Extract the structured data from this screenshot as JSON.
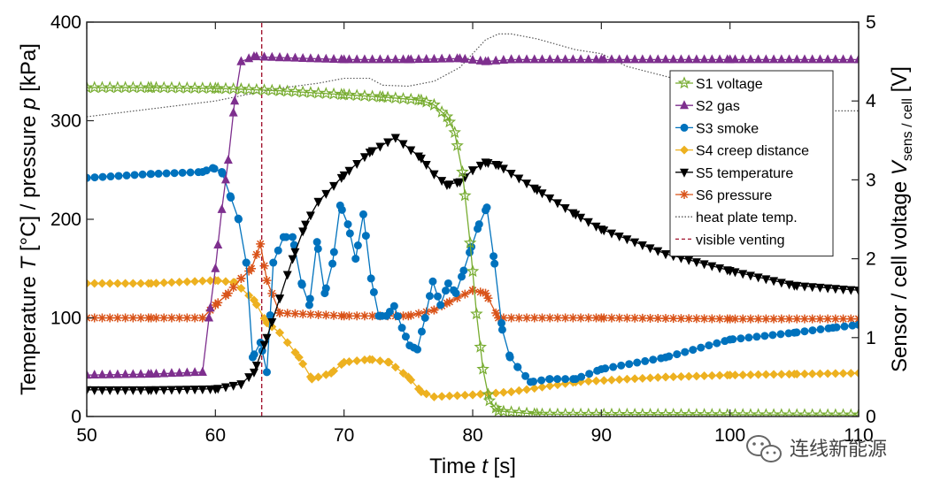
{
  "chart_data": {
    "type": "line",
    "xlabel_parts": [
      "Time ",
      "t",
      " [s]"
    ],
    "ylabel_left_parts": [
      "Temperature ",
      "T",
      "  [°C] / pressure ",
      "p",
      " [kPa]"
    ],
    "ylabel_right_parts": [
      "Sensor / cell voltage ",
      "V",
      "sens / cell",
      " [V]"
    ],
    "xlim": [
      50,
      110
    ],
    "ylim_left": [
      0,
      400
    ],
    "ylim_right": [
      0,
      5
    ],
    "x_ticks": [
      50,
      60,
      70,
      80,
      90,
      100,
      110
    ],
    "y_left_ticks": [
      0,
      100,
      200,
      300,
      400
    ],
    "y_right_ticks": [
      0,
      1,
      2,
      3,
      4,
      5
    ],
    "grid": false,
    "legend_position": "top-right",
    "series": [
      {
        "name": "S1 voltage",
        "axis": "right",
        "color": "#77ac30",
        "marker": "star",
        "points": [
          [
            50,
            4.17
          ],
          [
            55,
            4.17
          ],
          [
            60,
            4.16
          ],
          [
            62,
            4.15
          ],
          [
            65,
            4.13
          ],
          [
            70,
            4.08
          ],
          [
            73,
            4.05
          ],
          [
            76,
            4.01
          ],
          [
            77,
            3.95
          ],
          [
            78,
            3.8
          ],
          [
            78.6,
            3.6
          ],
          [
            79.2,
            3.1
          ],
          [
            79.8,
            2.2
          ],
          [
            80.3,
            1.3
          ],
          [
            80.8,
            0.6
          ],
          [
            81.3,
            0.2
          ],
          [
            82,
            0.07
          ],
          [
            85,
            0.03
          ],
          [
            110,
            0.02
          ]
        ]
      },
      {
        "name": "S2 gas",
        "axis": "left",
        "color": "#7e2f8e",
        "marker": "triangle-up",
        "points": [
          [
            50,
            42
          ],
          [
            55,
            43
          ],
          [
            59,
            45
          ],
          [
            59.5,
            100
          ],
          [
            60,
            150
          ],
          [
            60.5,
            210
          ],
          [
            61,
            260
          ],
          [
            61.5,
            320
          ],
          [
            62,
            360
          ],
          [
            63,
            365
          ],
          [
            65,
            364
          ],
          [
            70,
            362
          ],
          [
            75,
            362
          ],
          [
            79,
            363
          ],
          [
            81,
            360
          ],
          [
            83,
            362
          ],
          [
            90,
            362
          ],
          [
            100,
            362
          ],
          [
            110,
            362
          ]
        ]
      },
      {
        "name": "S3 smoke",
        "axis": "left",
        "color": "#0072bd",
        "marker": "circle",
        "points": [
          [
            50,
            242
          ],
          [
            55,
            246
          ],
          [
            59,
            248
          ],
          [
            59.8,
            252
          ],
          [
            60.5,
            248
          ],
          [
            61.2,
            222
          ],
          [
            61.8,
            200
          ],
          [
            62.4,
            156
          ],
          [
            62.9,
            60
          ],
          [
            63.5,
            75
          ],
          [
            64,
            45
          ],
          [
            64.5,
            156
          ],
          [
            65.3,
            182
          ],
          [
            66,
            182
          ],
          [
            66.7,
            135
          ],
          [
            67.3,
            113
          ],
          [
            67.9,
            177
          ],
          [
            68.5,
            125
          ],
          [
            69.1,
            155
          ],
          [
            69.7,
            214
          ],
          [
            70.3,
            195
          ],
          [
            70.9,
            160
          ],
          [
            71.5,
            205
          ],
          [
            72.1,
            140
          ],
          [
            72.7,
            102
          ],
          [
            73.3,
            102
          ],
          [
            73.9,
            112
          ],
          [
            74.5,
            90
          ],
          [
            75.1,
            72
          ],
          [
            75.7,
            68
          ],
          [
            76.3,
            100
          ],
          [
            76.9,
            137
          ],
          [
            77.5,
            113
          ],
          [
            78.1,
            135
          ],
          [
            78.7,
            125
          ],
          [
            79.3,
            148
          ],
          [
            79.9,
            172
          ],
          [
            80.5,
            195
          ],
          [
            81.1,
            212
          ],
          [
            81.7,
            155
          ],
          [
            82.3,
            88
          ],
          [
            82.9,
            60
          ],
          [
            83.5,
            50
          ],
          [
            84.5,
            35
          ],
          [
            86,
            38
          ],
          [
            88,
            38
          ],
          [
            90,
            48
          ],
          [
            95,
            60
          ],
          [
            100,
            78
          ],
          [
            105,
            85
          ],
          [
            108,
            90
          ],
          [
            110,
            93
          ]
        ]
      },
      {
        "name": "S4 creep distance",
        "axis": "left",
        "color": "#edb120",
        "marker": "diamond",
        "points": [
          [
            50,
            135
          ],
          [
            55,
            135
          ],
          [
            60,
            138
          ],
          [
            61.5,
            136
          ],
          [
            63,
            118
          ],
          [
            64,
            95
          ],
          [
            65,
            85
          ],
          [
            66.5,
            60
          ],
          [
            67.5,
            38
          ],
          [
            69,
            44
          ],
          [
            70,
            55
          ],
          [
            72,
            58
          ],
          [
            73.5,
            55
          ],
          [
            75,
            40
          ],
          [
            76,
            25
          ],
          [
            77,
            20
          ],
          [
            80,
            22
          ],
          [
            83,
            25
          ],
          [
            88,
            35
          ],
          [
            95,
            40
          ],
          [
            100,
            42
          ],
          [
            105,
            43
          ],
          [
            110,
            44
          ]
        ]
      },
      {
        "name": "S5 temperature",
        "axis": "left",
        "color": "#000000",
        "marker": "triangle-down",
        "points": [
          [
            50,
            27
          ],
          [
            55,
            27
          ],
          [
            60,
            28
          ],
          [
            62,
            33
          ],
          [
            63,
            45
          ],
          [
            64,
            80
          ],
          [
            65,
            120
          ],
          [
            66,
            160
          ],
          [
            67,
            195
          ],
          [
            68,
            218
          ],
          [
            70,
            245
          ],
          [
            72,
            268
          ],
          [
            74,
            283
          ],
          [
            76,
            262
          ],
          [
            77,
            246
          ],
          [
            78,
            235
          ],
          [
            79,
            238
          ],
          [
            80,
            250
          ],
          [
            81,
            258
          ],
          [
            82,
            255
          ],
          [
            85,
            230
          ],
          [
            88,
            205
          ],
          [
            90,
            190
          ],
          [
            95,
            165
          ],
          [
            100,
            148
          ],
          [
            105,
            133
          ],
          [
            110,
            128
          ]
        ]
      },
      {
        "name": "S6 pressure",
        "axis": "left",
        "color": "#d95319",
        "marker": "asterisk",
        "points": [
          [
            50,
            100
          ],
          [
            55,
            100
          ],
          [
            59,
            100
          ],
          [
            60,
            113
          ],
          [
            61,
            125
          ],
          [
            62,
            140
          ],
          [
            62.8,
            150
          ],
          [
            63.5,
            175
          ],
          [
            64,
            138
          ],
          [
            65,
            105
          ],
          [
            70,
            102
          ],
          [
            75,
            102
          ],
          [
            77,
            108
          ],
          [
            78,
            115
          ],
          [
            80,
            128
          ],
          [
            81,
            125
          ],
          [
            82,
            100
          ],
          [
            90,
            100
          ],
          [
            100,
            99
          ],
          [
            110,
            99
          ]
        ]
      },
      {
        "name": "heat plate temp.",
        "axis": "left",
        "color": "#555555",
        "marker": "none",
        "dash": "dotted",
        "points": [
          [
            50,
            304
          ],
          [
            55,
            312
          ],
          [
            60,
            320
          ],
          [
            63,
            328
          ],
          [
            65,
            333
          ],
          [
            68,
            338
          ],
          [
            70,
            343
          ],
          [
            72,
            343
          ],
          [
            73,
            336
          ],
          [
            75,
            335
          ],
          [
            77,
            340
          ],
          [
            79,
            354
          ],
          [
            80,
            368
          ],
          [
            81,
            382
          ],
          [
            82,
            388
          ],
          [
            83,
            388
          ],
          [
            85,
            383
          ],
          [
            88,
            372
          ],
          [
            90,
            368
          ],
          [
            92,
            355
          ],
          [
            95,
            345
          ],
          [
            98,
            334
          ],
          [
            100,
            328
          ],
          [
            103,
            320
          ],
          [
            106,
            314
          ],
          [
            108,
            310
          ],
          [
            110,
            310
          ]
        ]
      },
      {
        "name": "visible venting",
        "axis": "left",
        "color": "#a2142f",
        "marker": "none",
        "dash": "dashed",
        "points": [
          [
            63.6,
            0
          ],
          [
            63.6,
            400
          ]
        ]
      }
    ]
  },
  "watermark": {
    "text": "连线新能源",
    "icon": "wechat-bubbles-icon"
  }
}
